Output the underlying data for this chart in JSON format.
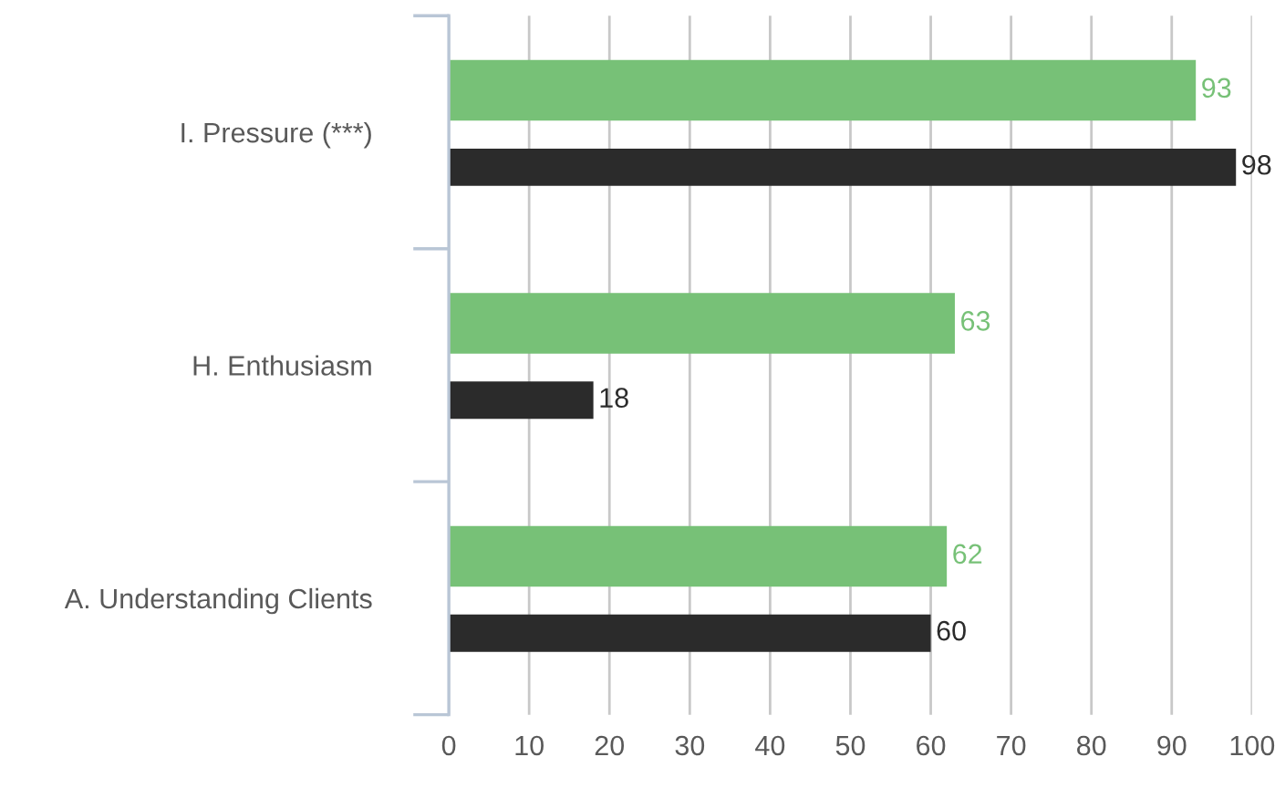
{
  "chart_data": {
    "type": "bar",
    "orientation": "horizontal",
    "categories": [
      "I. Pressure (***)",
      "H. Enthusiasm",
      "A. Understanding Clients"
    ],
    "series": [
      {
        "color": "#77c177",
        "values": [
          93,
          63,
          62
        ]
      },
      {
        "color": "#2b2b2b",
        "values": [
          98,
          18,
          60
        ]
      }
    ],
    "xlim": [
      0,
      100
    ],
    "xticks": [
      0,
      10,
      20,
      30,
      40,
      50,
      60,
      70,
      80,
      90,
      100
    ],
    "grid": "x",
    "data_labels": true,
    "legend": false
  }
}
